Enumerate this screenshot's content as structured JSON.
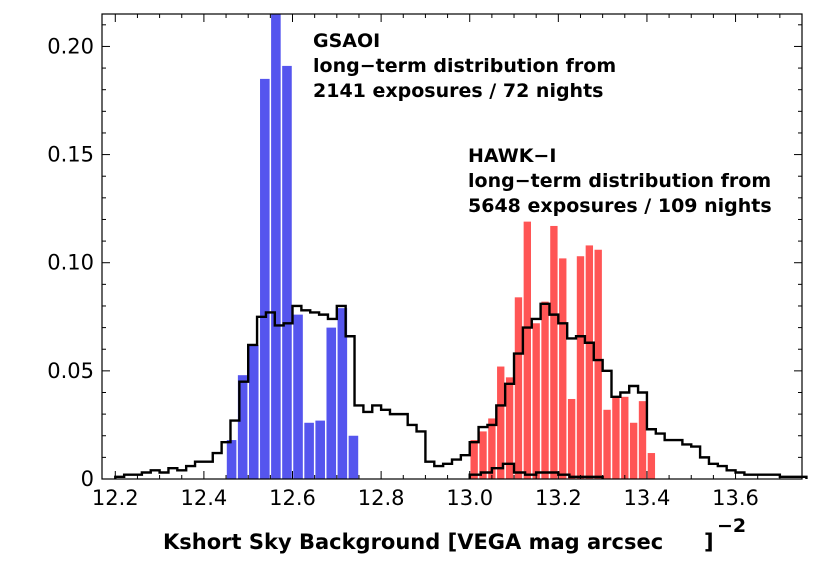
{
  "chart_data": {
    "type": "bar",
    "xlabel": "Kshort Sky Background [VEGA mag arcsec",
    "xlabel_superscript": "−2",
    "xlim": [
      12.17,
      13.75
    ],
    "ylim": [
      0,
      0.215
    ],
    "xticks": [
      "12.2",
      "12.4",
      "12.6",
      "12.8",
      "13.0",
      "13.2",
      "13.4",
      "13.6"
    ],
    "yticks": [
      "0",
      "0.05",
      "0.10",
      "0.15",
      "0.20"
    ],
    "annotations": [
      {
        "lines": [
          "GSAOI",
          "long−term distribution from",
          "2141 exposures / 72 nights"
        ]
      },
      {
        "lines": [
          "HAWK−I",
          "long−term distribution from",
          "5648 exposures / 109 nights"
        ]
      }
    ],
    "series": [
      {
        "color": "#5555ee",
        "style": "filled-bars",
        "bin_width": 0.025,
        "x": [
          12.45,
          12.475,
          12.5,
          12.525,
          12.55,
          12.575,
          12.6,
          12.625,
          12.65,
          12.675,
          12.7,
          12.725
        ],
        "values": [
          0.018,
          0.048,
          0.062,
          0.185,
          0.215,
          0.191,
          0.076,
          0.026,
          0.027,
          0.07,
          0.079,
          0.02
        ]
      },
      {
        "color": "#ff5555",
        "style": "filled-bars",
        "bin_width": 0.02,
        "x": [
          13.0,
          13.02,
          13.04,
          13.06,
          13.08,
          13.1,
          13.12,
          13.14,
          13.16,
          13.18,
          13.2,
          13.22,
          13.24,
          13.26,
          13.28,
          13.3,
          13.32,
          13.34,
          13.36,
          13.38,
          13.4
        ],
        "values": [
          0.018,
          0.022,
          0.028,
          0.052,
          0.047,
          0.084,
          0.119,
          0.072,
          0.082,
          0.117,
          0.102,
          0.037,
          0.103,
          0.108,
          0.106,
          0.032,
          0.038,
          0.038,
          0.026,
          0.036,
          0.012
        ]
      },
      {
        "color": "#000000",
        "style": "step-outline",
        "bin_width": 0.02,
        "x": [
          12.2,
          12.22,
          12.24,
          12.26,
          12.28,
          12.3,
          12.32,
          12.34,
          12.36,
          12.38,
          12.4,
          12.42,
          12.44,
          12.46,
          12.48,
          12.5,
          12.52,
          12.54,
          12.56,
          12.58,
          12.6,
          12.62,
          12.64,
          12.66,
          12.68,
          12.7,
          12.72,
          12.74,
          12.76,
          12.78,
          12.8,
          12.82,
          12.84,
          12.86,
          12.88,
          12.9,
          12.92,
          12.94,
          12.96,
          12.98,
          13.0,
          13.02,
          13.04,
          13.06,
          13.08,
          13.1,
          13.12,
          13.14,
          13.16,
          13.18,
          13.2,
          13.22,
          13.24,
          13.26,
          13.28,
          13.3,
          13.32,
          13.34,
          13.36,
          13.38,
          13.4,
          13.42,
          13.44,
          13.46,
          13.48,
          13.5,
          13.52,
          13.54,
          13.56,
          13.58,
          13.6,
          13.62,
          13.64,
          13.66,
          13.68,
          13.7,
          13.72,
          13.74
        ],
        "values": [
          0.001,
          0.002,
          0.002,
          0.003,
          0.004,
          0.003,
          0.005,
          0.004,
          0.006,
          0.008,
          0.008,
          0.012,
          0.017,
          0.027,
          0.045,
          0.062,
          0.075,
          0.077,
          0.071,
          0.072,
          0.08,
          0.078,
          0.077,
          0.076,
          0.074,
          0.08,
          0.066,
          0.034,
          0.031,
          0.034,
          0.032,
          0.03,
          0.03,
          0.025,
          0.022,
          0.008,
          0.006,
          0.007,
          0.009,
          0.011,
          0.017,
          0.024,
          0.025,
          0.034,
          0.044,
          0.058,
          0.07,
          0.074,
          0.081,
          0.076,
          0.072,
          0.065,
          0.066,
          0.063,
          0.055,
          0.05,
          0.038,
          0.04,
          0.043,
          0.04,
          0.023,
          0.021,
          0.018,
          0.018,
          0.016,
          0.015,
          0.01,
          0.007,
          0.006,
          0.004,
          0.003,
          0.002,
          0.002,
          0.002,
          0.002,
          0.001,
          0.001,
          0.001
        ]
      },
      {
        "color": "#000000",
        "style": "step-outline",
        "bin_width": 0.025,
        "x": [
          13.0,
          13.025,
          13.05,
          13.075,
          13.1,
          13.125,
          13.15,
          13.175,
          13.2,
          13.225,
          13.25,
          13.275
        ],
        "values": [
          0.002,
          0.003,
          0.005,
          0.007,
          0.003,
          0.002,
          0.003,
          0.003,
          0.002,
          0.001,
          0.001,
          0.001
        ]
      }
    ]
  }
}
